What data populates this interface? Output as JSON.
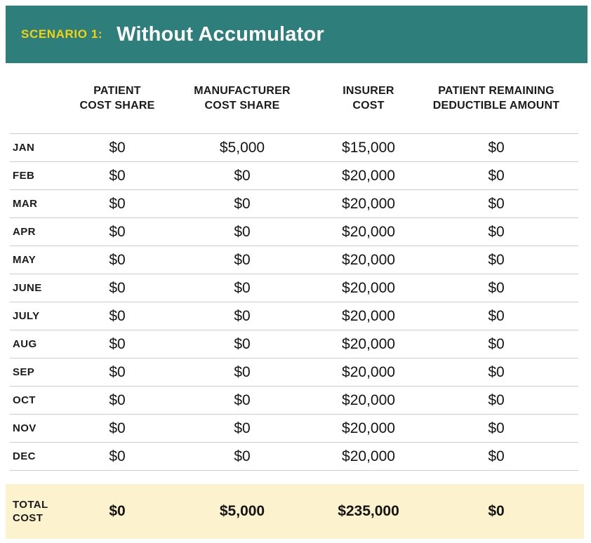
{
  "banner": {
    "scenario_label": "SCENARIO 1:",
    "title": "Without Accumulator",
    "bg_color": "#2e7f7b",
    "scenario_color": "#f5d20e",
    "title_color": "#ffffff"
  },
  "colors": {
    "total_row_bg": "#fcf3ce",
    "divider": "#cbcbcb",
    "text": "#1b1b1b"
  },
  "chart_data": {
    "type": "table",
    "scenario": "SCENARIO 1:",
    "title": "Without Accumulator",
    "column_headers_2line": [
      [
        "PATIENT",
        "COST SHARE"
      ],
      [
        "MANUFACTURER",
        "COST SHARE"
      ],
      [
        "INSURER",
        "COST"
      ],
      [
        "PATIENT REMAINING",
        "DEDUCTIBLE AMOUNT"
      ]
    ],
    "rows": [
      {
        "month": "JAN",
        "values": [
          "$0",
          "$5,000",
          "$15,000",
          "$0"
        ]
      },
      {
        "month": "FEB",
        "values": [
          "$0",
          "$0",
          "$20,000",
          "$0"
        ]
      },
      {
        "month": "MAR",
        "values": [
          "$0",
          "$0",
          "$20,000",
          "$0"
        ]
      },
      {
        "month": "APR",
        "values": [
          "$0",
          "$0",
          "$20,000",
          "$0"
        ]
      },
      {
        "month": "MAY",
        "values": [
          "$0",
          "$0",
          "$20,000",
          "$0"
        ]
      },
      {
        "month": "JUNE",
        "values": [
          "$0",
          "$0",
          "$20,000",
          "$0"
        ]
      },
      {
        "month": "JULY",
        "values": [
          "$0",
          "$0",
          "$20,000",
          "$0"
        ]
      },
      {
        "month": "AUG",
        "values": [
          "$0",
          "$0",
          "$20,000",
          "$0"
        ]
      },
      {
        "month": "SEP",
        "values": [
          "$0",
          "$0",
          "$20,000",
          "$0"
        ]
      },
      {
        "month": "OCT",
        "values": [
          "$0",
          "$0",
          "$20,000",
          "$0"
        ]
      },
      {
        "month": "NOV",
        "values": [
          "$0",
          "$0",
          "$20,000",
          "$0"
        ]
      },
      {
        "month": "DEC",
        "values": [
          "$0",
          "$0",
          "$20,000",
          "$0"
        ]
      }
    ],
    "total": {
      "label_line1": "TOTAL",
      "label_line2": "COST",
      "values": [
        "$0",
        "$5,000",
        "$235,000",
        "$0"
      ]
    }
  }
}
